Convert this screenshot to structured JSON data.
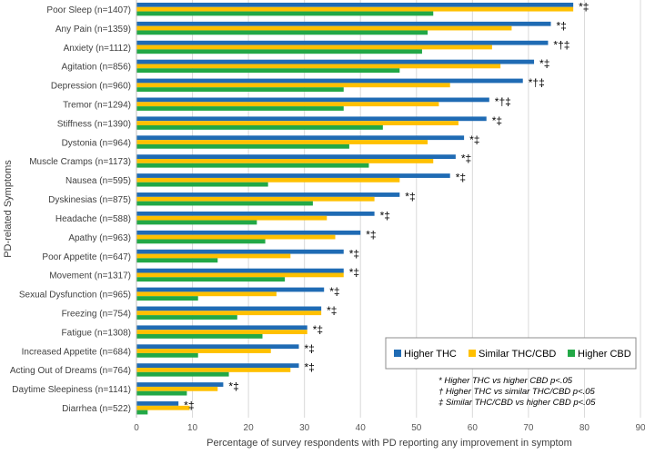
{
  "chart_data": {
    "type": "bar",
    "orientation": "horizontal",
    "xlabel": "Percentage of survey respondents with PD reporting any improvement in symptom",
    "ylabel": "PD-related Symptoms",
    "xlim": [
      0,
      90
    ],
    "xticks": [
      "0",
      "10",
      "20",
      "30",
      "40",
      "50",
      "60",
      "70",
      "80",
      "90"
    ],
    "grid": "vertical",
    "legend_position": "bottom-right",
    "categories": [
      "Poor Sleep (n=1407)",
      "Any Pain (n=1359)",
      "Anxiety (n=1112)",
      "Agitation (n=856)",
      "Depression (n=960)",
      "Tremor (n=1294)",
      "Stiffness (n=1390)",
      "Dystonia (n=964)",
      "Muscle Cramps (n=1173)",
      "Nausea (n=595)",
      "Dyskinesias (n=875)",
      "Headache (n=588)",
      "Apathy (n=963)",
      "Poor Appetite (n=647)",
      "Movement (n=1317)",
      "Sexual Dysfunction (n=965)",
      "Freezing (n=754)",
      "Fatigue (n=1308)",
      "Increased Appetite (n=684)",
      "Acting Out of Dreams (n=764)",
      "Daytime Sleepiness (n=1141)",
      "Diarrhea (n=522)"
    ],
    "series": [
      {
        "name": "Higher THC",
        "color": "#1F6BB4",
        "values": [
          78,
          74,
          73.5,
          71,
          69,
          63,
          62.5,
          58.5,
          57,
          56,
          47,
          42.5,
          40,
          37,
          37,
          33.5,
          33,
          30.5,
          29,
          29,
          15.5,
          7.5
        ]
      },
      {
        "name": "Similar THC/CBD",
        "color": "#FFC000",
        "values": [
          78,
          67,
          63.5,
          65,
          56,
          54,
          57.5,
          52,
          53,
          47,
          42.5,
          34,
          35.5,
          27.5,
          37,
          25,
          33,
          30.5,
          24,
          27.5,
          14.5,
          9.5
        ]
      },
      {
        "name": "Higher CBD",
        "color": "#22A846",
        "values": [
          53,
          52,
          51,
          47,
          37,
          37,
          44,
          38,
          41.5,
          23.5,
          31.5,
          21.5,
          23,
          14.5,
          26.5,
          11,
          18,
          22.5,
          11,
          16.5,
          9,
          2
        ]
      }
    ],
    "significance_labels": [
      "*‡",
      "*‡",
      "*†‡",
      "*‡",
      "*†‡",
      "*†‡",
      "*‡",
      "*‡",
      "*‡",
      "*‡",
      "*‡",
      "*‡",
      "*‡",
      "*‡",
      "*‡",
      "*‡",
      "*‡",
      "*‡",
      "*‡",
      "*‡",
      "*‡",
      "*‡"
    ],
    "footnotes": [
      "* Higher THC vs higher CBD p<.05",
      "† Higher THC vs similar THC/CBD p<.05",
      "‡ Similar THC/CBD vs higher CBD p<.05"
    ]
  }
}
